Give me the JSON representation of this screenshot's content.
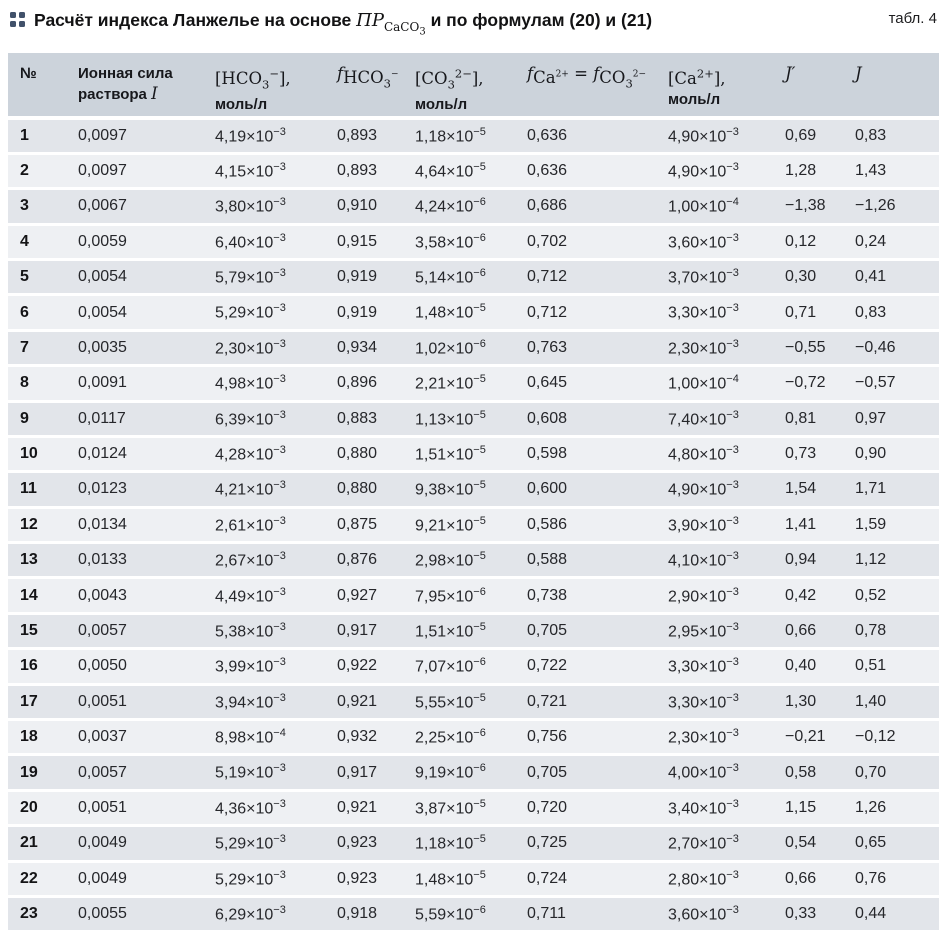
{
  "title": {
    "prefix": "Расчёт индекса Ланжелье на основе ",
    "pr": "ПР",
    "pr_sub": "CaCO₃",
    "suffix": " и по формулам (20) и (21)",
    "tag": "табл. 4"
  },
  "colors": {
    "header_bg": "#ccd3db",
    "row_odd": "#e2e5ea",
    "row_even": "#eef0f3",
    "dots_icon": "#41516a"
  },
  "table": {
    "columns": [
      {
        "label": "№"
      },
      {
        "text": "Ионная сила раствора",
        "var": "I"
      },
      {
        "formula": "[HCO₃⁻],",
        "unit": "моль/л"
      },
      {
        "f": "f",
        "sub": "HCO₃⁻"
      },
      {
        "formula": "[CO₃²⁻],",
        "unit": "моль/л"
      },
      {
        "f1": "f",
        "sub1": "Ca²⁺",
        "eq": " = ",
        "f2": "f",
        "sub2": "CO₃²⁻"
      },
      {
        "formula": "[Ca²⁺],",
        "unit": "моль/л"
      },
      {
        "formula": "J′"
      },
      {
        "formula": "J"
      }
    ],
    "rows": [
      [
        "1",
        "0,0097",
        "4,19×10⁻³",
        "0,893",
        "1,18×10⁻⁵",
        "0,636",
        "4,90×10⁻³",
        "0,69",
        "0,83"
      ],
      [
        "2",
        "0,0097",
        "4,15×10⁻³",
        "0,893",
        "4,64×10⁻⁵",
        "0,636",
        "4,90×10⁻³",
        "1,28",
        "1,43"
      ],
      [
        "3",
        "0,0067",
        "3,80×10⁻³",
        "0,910",
        "4,24×10⁻⁶",
        "0,686",
        "1,00×10⁻⁴",
        "−1,38",
        "−1,26"
      ],
      [
        "4",
        "0,0059",
        "6,40×10⁻³",
        "0,915",
        "3,58×10⁻⁶",
        "0,702",
        "3,60×10⁻³",
        "0,12",
        "0,24"
      ],
      [
        "5",
        "0,0054",
        "5,79×10⁻³",
        "0,919",
        "5,14×10⁻⁶",
        "0,712",
        "3,70×10⁻³",
        "0,30",
        "0,41"
      ],
      [
        "6",
        "0,0054",
        "5,29×10⁻³",
        "0,919",
        "1,48×10⁻⁵",
        "0,712",
        "3,30×10⁻³",
        "0,71",
        "0,83"
      ],
      [
        "7",
        "0,0035",
        "2,30×10⁻³",
        "0,934",
        "1,02×10⁻⁶",
        "0,763",
        "2,30×10⁻³",
        "−0,55",
        "−0,46"
      ],
      [
        "8",
        "0,0091",
        "4,98×10⁻³",
        "0,896",
        "2,21×10⁻⁵",
        "0,645",
        "1,00×10⁻⁴",
        "−0,72",
        "−0,57"
      ],
      [
        "9",
        "0,0117",
        "6,39×10⁻³",
        "0,883",
        "1,13×10⁻⁵",
        "0,608",
        "7,40×10⁻³",
        "0,81",
        "0,97"
      ],
      [
        "10",
        "0,0124",
        "4,28×10⁻³",
        "0,880",
        "1,51×10⁻⁵",
        "0,598",
        "4,80×10⁻³",
        "0,73",
        "0,90"
      ],
      [
        "11",
        "0,0123",
        "4,21×10⁻³",
        "0,880",
        "9,38×10⁻⁵",
        "0,600",
        "4,90×10⁻³",
        "1,54",
        "1,71"
      ],
      [
        "12",
        "0,0134",
        "2,61×10⁻³",
        "0,875",
        "9,21×10⁻⁵",
        "0,586",
        "3,90×10⁻³",
        "1,41",
        "1,59"
      ],
      [
        "13",
        "0,0133",
        "2,67×10⁻³",
        "0,876",
        "2,98×10⁻⁵",
        "0,588",
        "4,10×10⁻³",
        "0,94",
        "1,12"
      ],
      [
        "14",
        "0,0043",
        "4,49×10⁻³",
        "0,927",
        "7,95×10⁻⁶",
        "0,738",
        "2,90×10⁻³",
        "0,42",
        "0,52"
      ],
      [
        "15",
        "0,0057",
        "5,38×10⁻³",
        "0,917",
        "1,51×10⁻⁵",
        "0,705",
        "2,95×10⁻³",
        "0,66",
        "0,78"
      ],
      [
        "16",
        "0,0050",
        "3,99×10⁻³",
        "0,922",
        "7,07×10⁻⁶",
        "0,722",
        "3,30×10⁻³",
        "0,40",
        "0,51"
      ],
      [
        "17",
        "0,0051",
        "3,94×10⁻³",
        "0,921",
        "5,55×10⁻⁵",
        "0,721",
        "3,30×10⁻³",
        "1,30",
        "1,40"
      ],
      [
        "18",
        "0,0037",
        "8,98×10⁻⁴",
        "0,932",
        "2,25×10⁻⁶",
        "0,756",
        "2,30×10⁻³",
        "−0,21",
        "−0,12"
      ],
      [
        "19",
        "0,0057",
        "5,19×10⁻³",
        "0,917",
        "9,19×10⁻⁶",
        "0,705",
        "4,00×10⁻³",
        "0,58",
        "0,70"
      ],
      [
        "20",
        "0,0051",
        "4,36×10⁻³",
        "0,921",
        "3,87×10⁻⁵",
        "0,720",
        "3,40×10⁻³",
        "1,15",
        "1,26"
      ],
      [
        "21",
        "0,0049",
        "5,29×10⁻³",
        "0,923",
        "1,18×10⁻⁵",
        "0,725",
        "2,70×10⁻³",
        "0,54",
        "0,65"
      ],
      [
        "22",
        "0,0049",
        "5,29×10⁻³",
        "0,923",
        "1,48×10⁻⁵",
        "0,724",
        "2,80×10⁻³",
        "0,66",
        "0,76"
      ],
      [
        "23",
        "0,0055",
        "6,29×10⁻³",
        "0,918",
        "5,59×10⁻⁶",
        "0,711",
        "3,60×10⁻³",
        "0,33",
        "0,44"
      ]
    ]
  }
}
